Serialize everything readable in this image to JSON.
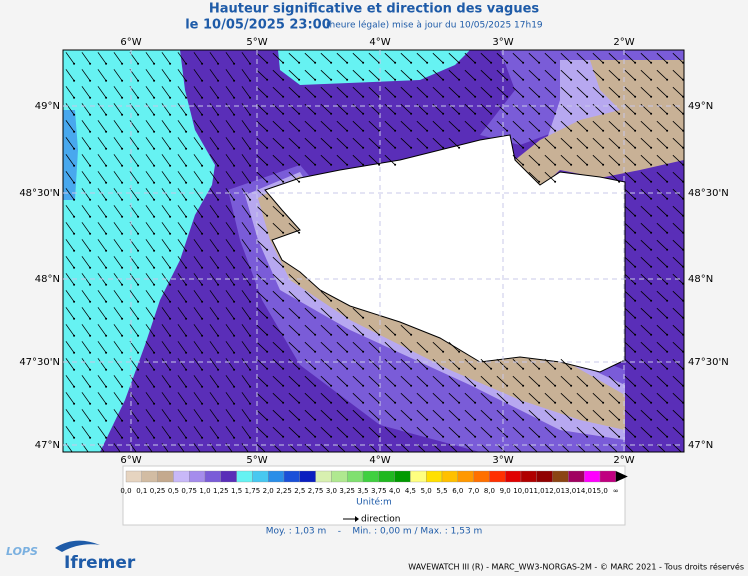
{
  "header": {
    "title": "Hauteur significative et direction des vagues",
    "date": "le 10/05/2025 23:00",
    "update": "(heure légale) mise à jour du 10/05/2025 17h19"
  },
  "map": {
    "lon_labels": [
      "6°W",
      "5°W",
      "4°W",
      "3°W",
      "2°W"
    ],
    "lat_labels": [
      "49°N",
      "48°30'N",
      "48°N",
      "47°30'N",
      "47°N"
    ]
  },
  "legend": {
    "labels": [
      "0,0",
      "0,1",
      "0,25",
      "0,5",
      "0,75",
      "1,0",
      "1,25",
      "1,5",
      "1,75",
      "2,0",
      "2,25",
      "2,5",
      "2,75",
      "3,0",
      "3,25",
      "3,5",
      "3,75",
      "4,0",
      "4,5",
      "5,0",
      "5,5",
      "6,0",
      "7,0",
      "8,0",
      "9,0",
      "10,0",
      "11,0",
      "12,0",
      "13,0",
      "14,0",
      "15,0",
      "∞"
    ],
    "colors": [
      "#e6d4c0",
      "#d2bca3",
      "#c4a98e",
      "#c8b8f8",
      "#a58cec",
      "#7a5cd8",
      "#5a2eb8",
      "#66f2f2",
      "#48c8f0",
      "#2a8ee8",
      "#1a50d8",
      "#0a1ec0",
      "#d8f0b0",
      "#b0e890",
      "#80e070",
      "#40d040",
      "#20b820",
      "#009a00",
      "#ffff80",
      "#ffe000",
      "#ffc000",
      "#ff9800",
      "#ff7000",
      "#ff3000",
      "#e00000",
      "#b00000",
      "#900000",
      "#8b4513",
      "#a00060",
      "#ff00ff",
      "#c00080"
    ],
    "unit": "Unité:m",
    "direction": "direction",
    "stats": "Moy. : 1,03 m    -    Min. : 0,00 m / Max. : 1,53 m"
  },
  "footer": {
    "credits": "WAVEWATCH III (R) - MARC_WW3-NORGAS-2M - © MARC 2021 - Tous droits réservés",
    "logo1": "LOPS",
    "logo2": "Ifremer"
  }
}
